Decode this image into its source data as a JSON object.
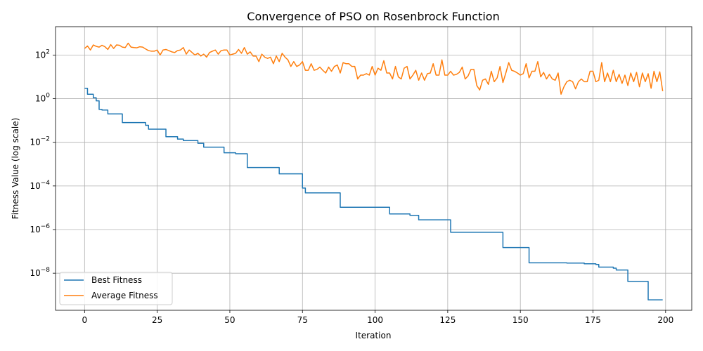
{
  "chart_data": {
    "type": "line",
    "title": "Convergence of PSO on Rosenbrock Function",
    "xlabel": "Iteration",
    "ylabel": "Fitness Value (log scale)",
    "xlim": [
      -10,
      209
    ],
    "ylim_log10": [
      -9.7,
      3.3
    ],
    "y_scale": "log",
    "grid": true,
    "legend_position": "lower-left",
    "x_ticks": [
      0,
      25,
      50,
      75,
      100,
      125,
      150,
      175,
      200
    ],
    "x_tick_labels": [
      "0",
      "25",
      "50",
      "75",
      "100",
      "125",
      "150",
      "175",
      "200"
    ],
    "y_ticks_log10": [
      2,
      0,
      -2,
      -4,
      -6,
      -8
    ],
    "y_tick_labels": [
      {
        "base": "10",
        "exp": "2"
      },
      {
        "base": "10",
        "exp": "0"
      },
      {
        "base": "10",
        "exp": "−2"
      },
      {
        "base": "10",
        "exp": "−4"
      },
      {
        "base": "10",
        "exp": "−6"
      },
      {
        "base": "10",
        "exp": "−8"
      }
    ],
    "series": [
      {
        "name": "Best Fitness",
        "color": "#1f77b4",
        "style": "step",
        "points": [
          [
            0,
            3.0
          ],
          [
            1,
            1.6
          ],
          [
            3,
            1.1
          ],
          [
            4,
            0.8
          ],
          [
            5,
            0.32
          ],
          [
            6,
            0.3
          ],
          [
            8,
            0.2
          ],
          [
            12,
            0.2
          ],
          [
            13,
            0.08
          ],
          [
            20,
            0.08
          ],
          [
            21,
            0.06
          ],
          [
            22,
            0.04
          ],
          [
            27,
            0.04
          ],
          [
            28,
            0.018
          ],
          [
            31,
            0.018
          ],
          [
            32,
            0.014
          ],
          [
            34,
            0.012
          ],
          [
            38,
            0.012
          ],
          [
            39,
            0.009
          ],
          [
            40,
            0.009
          ],
          [
            41,
            0.006
          ],
          [
            47,
            0.006
          ],
          [
            48,
            0.0033
          ],
          [
            51,
            0.0033
          ],
          [
            52,
            0.003
          ],
          [
            55,
            0.003
          ],
          [
            56,
            0.0007
          ],
          [
            66,
            0.0007
          ],
          [
            67,
            0.00036
          ],
          [
            74,
            0.00036
          ],
          [
            75,
            8e-05
          ],
          [
            76,
            4.8e-05
          ],
          [
            87,
            4.8e-05
          ],
          [
            88,
            1.05e-05
          ],
          [
            103,
            1.05e-05
          ],
          [
            105,
            5.2e-06
          ],
          [
            111,
            5.2e-06
          ],
          [
            112,
            4.5e-06
          ],
          [
            114,
            4.5e-06
          ],
          [
            115,
            2.8e-06
          ],
          [
            125,
            2.8e-06
          ],
          [
            126,
            7.5e-07
          ],
          [
            143,
            7.5e-07
          ],
          [
            144,
            1.5e-07
          ],
          [
            152,
            1.5e-07
          ],
          [
            153,
            3e-08
          ],
          [
            165,
            3e-08
          ],
          [
            166,
            2.9e-08
          ],
          [
            171,
            2.9e-08
          ],
          [
            172,
            2.7e-08
          ],
          [
            175,
            2.7e-08
          ],
          [
            176,
            2.5e-08
          ],
          [
            177,
            1.9e-08
          ],
          [
            180,
            1.9e-08
          ],
          [
            182,
            1.7e-08
          ],
          [
            183,
            1.4e-08
          ],
          [
            186,
            1.4e-08
          ],
          [
            187,
            4.2e-09
          ],
          [
            193,
            4.2e-09
          ],
          [
            194,
            6e-10
          ],
          [
            199,
            6e-10
          ]
        ]
      },
      {
        "name": "Average Fitness",
        "color": "#ff7f0e",
        "style": "line",
        "points": [
          [
            0,
            200
          ],
          [
            1,
            260
          ],
          [
            2,
            170
          ],
          [
            3,
            290
          ],
          [
            4,
            250
          ],
          [
            5,
            230
          ],
          [
            6,
            280
          ],
          [
            7,
            240
          ],
          [
            8,
            180
          ],
          [
            9,
            300
          ],
          [
            10,
            200
          ],
          [
            11,
            290
          ],
          [
            12,
            280
          ],
          [
            13,
            230
          ],
          [
            14,
            220
          ],
          [
            15,
            350
          ],
          [
            16,
            230
          ],
          [
            17,
            220
          ],
          [
            18,
            215
          ],
          [
            19,
            240
          ],
          [
            20,
            230
          ],
          [
            21,
            190
          ],
          [
            22,
            160
          ],
          [
            23,
            150
          ],
          [
            24,
            150
          ],
          [
            25,
            170
          ],
          [
            26,
            100
          ],
          [
            27,
            170
          ],
          [
            28,
            180
          ],
          [
            29,
            160
          ],
          [
            30,
            140
          ],
          [
            31,
            130
          ],
          [
            32,
            160
          ],
          [
            33,
            170
          ],
          [
            34,
            220
          ],
          [
            35,
            110
          ],
          [
            36,
            170
          ],
          [
            37,
            130
          ],
          [
            38,
            100
          ],
          [
            39,
            120
          ],
          [
            40,
            90
          ],
          [
            41,
            110
          ],
          [
            42,
            80
          ],
          [
            43,
            130
          ],
          [
            44,
            150
          ],
          [
            45,
            170
          ],
          [
            46,
            110
          ],
          [
            47,
            160
          ],
          [
            48,
            170
          ],
          [
            49,
            170
          ],
          [
            50,
            100
          ],
          [
            51,
            110
          ],
          [
            52,
            120
          ],
          [
            53,
            180
          ],
          [
            54,
            120
          ],
          [
            55,
            220
          ],
          [
            56,
            110
          ],
          [
            57,
            140
          ],
          [
            58,
            90
          ],
          [
            59,
            90
          ],
          [
            60,
            50
          ],
          [
            61,
            110
          ],
          [
            62,
            80
          ],
          [
            63,
            70
          ],
          [
            64,
            80
          ],
          [
            65,
            40
          ],
          [
            66,
            90
          ],
          [
            67,
            50
          ],
          [
            68,
            120
          ],
          [
            69,
            80
          ],
          [
            70,
            60
          ],
          [
            71,
            30
          ],
          [
            72,
            50
          ],
          [
            73,
            30
          ],
          [
            74,
            35
          ],
          [
            75,
            50
          ],
          [
            76,
            20
          ],
          [
            77,
            20
          ],
          [
            78,
            40
          ],
          [
            79,
            20
          ],
          [
            80,
            22
          ],
          [
            81,
            28
          ],
          [
            82,
            20
          ],
          [
            83,
            15
          ],
          [
            84,
            28
          ],
          [
            85,
            18
          ],
          [
            86,
            30
          ],
          [
            87,
            35
          ],
          [
            88,
            15
          ],
          [
            89,
            45
          ],
          [
            90,
            40
          ],
          [
            91,
            40
          ],
          [
            92,
            30
          ],
          [
            93,
            30
          ],
          [
            94,
            8
          ],
          [
            95,
            12
          ],
          [
            96,
            12
          ],
          [
            97,
            14
          ],
          [
            98,
            12
          ],
          [
            99,
            30
          ],
          [
            100,
            12
          ],
          [
            101,
            25
          ],
          [
            102,
            20
          ],
          [
            103,
            55
          ],
          [
            104,
            15
          ],
          [
            105,
            15
          ],
          [
            106,
            8
          ],
          [
            107,
            30
          ],
          [
            108,
            10
          ],
          [
            109,
            8
          ],
          [
            110,
            25
          ],
          [
            111,
            30
          ],
          [
            112,
            8
          ],
          [
            113,
            12
          ],
          [
            114,
            20
          ],
          [
            115,
            7
          ],
          [
            116,
            15
          ],
          [
            117,
            7
          ],
          [
            118,
            14
          ],
          [
            119,
            15
          ],
          [
            120,
            40
          ],
          [
            121,
            12
          ],
          [
            122,
            12
          ],
          [
            123,
            60
          ],
          [
            124,
            12
          ],
          [
            125,
            12
          ],
          [
            126,
            18
          ],
          [
            127,
            12
          ],
          [
            128,
            13
          ],
          [
            129,
            16
          ],
          [
            130,
            28
          ],
          [
            131,
            8
          ],
          [
            132,
            11
          ],
          [
            133,
            22
          ],
          [
            134,
            22
          ],
          [
            135,
            4
          ],
          [
            136,
            2.5
          ],
          [
            137,
            7
          ],
          [
            138,
            8
          ],
          [
            139,
            4.5
          ],
          [
            140,
            18
          ],
          [
            141,
            6
          ],
          [
            142,
            9
          ],
          [
            143,
            30
          ],
          [
            144,
            5.5
          ],
          [
            145,
            15
          ],
          [
            146,
            45
          ],
          [
            147,
            20
          ],
          [
            148,
            18
          ],
          [
            149,
            15
          ],
          [
            150,
            12
          ],
          [
            151,
            14
          ],
          [
            152,
            40
          ],
          [
            153,
            9
          ],
          [
            154,
            18
          ],
          [
            155,
            18
          ],
          [
            156,
            50
          ],
          [
            157,
            10
          ],
          [
            158,
            16
          ],
          [
            159,
            8
          ],
          [
            160,
            13
          ],
          [
            161,
            8
          ],
          [
            162,
            7
          ],
          [
            163,
            15
          ],
          [
            164,
            1.6
          ],
          [
            165,
            3.5
          ],
          [
            166,
            6
          ],
          [
            167,
            7
          ],
          [
            168,
            6
          ],
          [
            169,
            2.8
          ],
          [
            170,
            6
          ],
          [
            171,
            8
          ],
          [
            172,
            6
          ],
          [
            173,
            6
          ],
          [
            174,
            18
          ],
          [
            175,
            18
          ],
          [
            176,
            6
          ],
          [
            177,
            7
          ],
          [
            178,
            45
          ],
          [
            179,
            6
          ],
          [
            180,
            15
          ],
          [
            181,
            6
          ],
          [
            182,
            20
          ],
          [
            183,
            6
          ],
          [
            184,
            13
          ],
          [
            185,
            5
          ],
          [
            186,
            12
          ],
          [
            187,
            4
          ],
          [
            188,
            15
          ],
          [
            189,
            6
          ],
          [
            190,
            16
          ],
          [
            191,
            3.5
          ],
          [
            192,
            15
          ],
          [
            193,
            6
          ],
          [
            194,
            14
          ],
          [
            195,
            3
          ],
          [
            196,
            18
          ],
          [
            197,
            6
          ],
          [
            198,
            17
          ],
          [
            199,
            2.2
          ]
        ]
      }
    ]
  }
}
